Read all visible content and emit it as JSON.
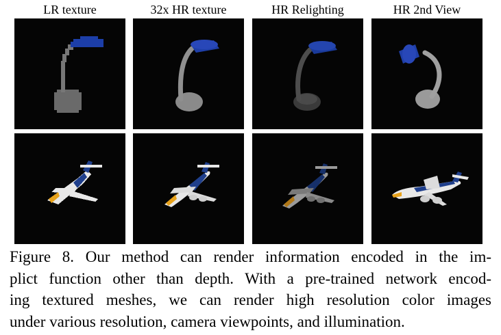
{
  "columns": [
    {
      "label": "LR texture"
    },
    {
      "label": "32x HR texture"
    },
    {
      "label": "HR Relighting"
    },
    {
      "label": "HR 2nd View"
    }
  ],
  "rows": [
    {
      "object": "desk-lamp",
      "lamp_shade_color": "#1a3fa0",
      "base_color": "#6e6e6e"
    },
    {
      "object": "airplane",
      "body_color": "#e8e8e8",
      "stripe_color": "#1f3f8c",
      "accent_color": "#e8a21a"
    }
  ],
  "caption": {
    "lines": [
      "Figure 8. Our method can render information encoded in the im-",
      "plict function other than depth. With a pre-trained network encod-",
      "ing textured meshes, we can render high resolution color images",
      "under various resolution, camera viewpoints, and illumination."
    ]
  }
}
